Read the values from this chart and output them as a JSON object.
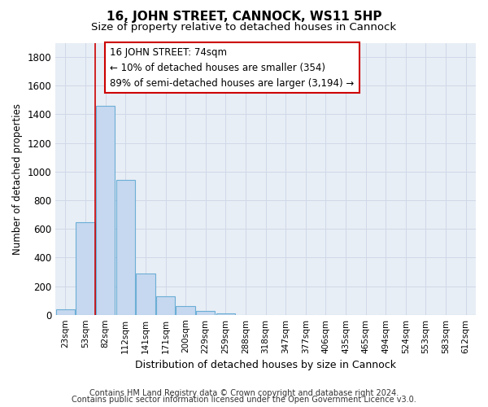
{
  "title": "16, JOHN STREET, CANNOCK, WS11 5HP",
  "subtitle": "Size of property relative to detached houses in Cannock",
  "xlabel": "Distribution of detached houses by size in Cannock",
  "ylabel": "Number of detached properties",
  "categories": [
    "23sqm",
    "53sqm",
    "82sqm",
    "112sqm",
    "141sqm",
    "171sqm",
    "200sqm",
    "229sqm",
    "259sqm",
    "288sqm",
    "318sqm",
    "347sqm",
    "377sqm",
    "406sqm",
    "435sqm",
    "465sqm",
    "494sqm",
    "524sqm",
    "553sqm",
    "583sqm",
    "612sqm"
  ],
  "values": [
    40,
    645,
    1460,
    940,
    290,
    130,
    60,
    25,
    10,
    0,
    0,
    0,
    0,
    0,
    0,
    0,
    0,
    0,
    0,
    0,
    0
  ],
  "bar_color": "#c5d8ef",
  "bar_edge_color": "#6baed6",
  "vline_color": "#cc0000",
  "annotation_text": "16 JOHN STREET: 74sqm\n← 10% of detached houses are smaller (354)\n89% of semi-detached houses are larger (3,194) →",
  "annotation_box_color": "#ffffff",
  "annotation_box_edge": "#cc0000",
  "ylim": [
    0,
    1900
  ],
  "yticks": [
    0,
    200,
    400,
    600,
    800,
    1000,
    1200,
    1400,
    1600,
    1800
  ],
  "grid_color": "#d0d8e8",
  "bg_color": "#e8eef5",
  "fig_bg_color": "#ffffff",
  "footer1": "Contains HM Land Registry data © Crown copyright and database right 2024.",
  "footer2": "Contains public sector information licensed under the Open Government Licence v3.0."
}
